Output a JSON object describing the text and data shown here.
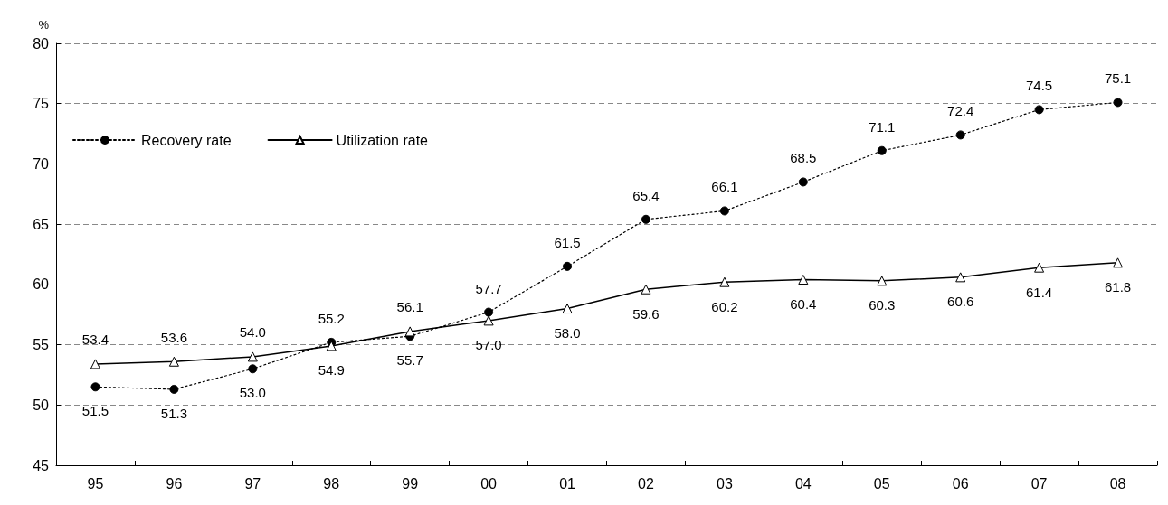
{
  "chart_data": {
    "type": "line",
    "ylabel": "%",
    "categories": [
      "95",
      "96",
      "97",
      "98",
      "99",
      "00",
      "01",
      "02",
      "03",
      "04",
      "05",
      "06",
      "07",
      "08"
    ],
    "series": [
      {
        "name": "Recovery rate",
        "color": "#000000",
        "marker": "circle",
        "line_style": "dotted",
        "values": [
          51.5,
          51.3,
          53.0,
          55.2,
          55.7,
          57.7,
          61.5,
          65.4,
          66.1,
          68.5,
          71.1,
          72.4,
          74.5,
          75.1
        ],
        "value_labels": [
          "51.5",
          "51.3",
          "53.0",
          "55.2",
          "55.7",
          "57.7",
          "61.5",
          "65.4",
          "66.1",
          "68.5",
          "71.1",
          "72.4",
          "74.5",
          "75.1"
        ]
      },
      {
        "name": "Utilization rate",
        "color": "#000000",
        "marker": "triangle",
        "line_style": "solid",
        "values": [
          53.4,
          53.6,
          54.0,
          54.9,
          56.1,
          57.0,
          58.0,
          59.6,
          60.2,
          60.4,
          60.3,
          60.6,
          61.4,
          61.8
        ],
        "value_labels": [
          "53.4",
          "53.6",
          "54.0",
          "54.9",
          "56.1",
          "57.0",
          "58.0",
          "59.6",
          "60.2",
          "60.4",
          "60.3",
          "60.6",
          "61.4",
          "61.8"
        ]
      }
    ],
    "ylim": [
      45,
      80
    ],
    "yticks": [
      45,
      50,
      55,
      60,
      65,
      70,
      75,
      80
    ],
    "grid": "y",
    "legend": "top left"
  }
}
